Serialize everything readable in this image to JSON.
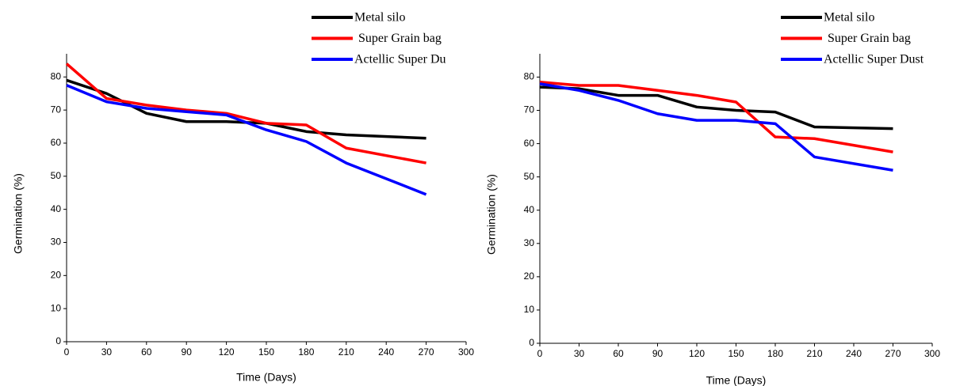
{
  "chart_data": [
    {
      "type": "line",
      "xlabel": "Time (Days)",
      "ylabel": "Germination (%)",
      "x": [
        0,
        30,
        60,
        90,
        120,
        150,
        180,
        210,
        270
      ],
      "series": [
        {
          "name": "Metal silo",
          "color": "#000000",
          "values": [
            79,
            75,
            69,
            66.5,
            66.5,
            66,
            63.5,
            62.5,
            61.5
          ]
        },
        {
          "name": "Super Grain bag",
          "color": "#ff0000",
          "values": [
            84,
            73.5,
            71.5,
            70,
            69,
            66,
            65.5,
            58.5,
            54
          ]
        },
        {
          "name": "Actellic Super Du",
          "color": "#0000ff",
          "values": [
            77.5,
            72.5,
            70.5,
            69.5,
            68.5,
            64,
            60.5,
            54,
            44.5
          ]
        }
      ],
      "xlim": [
        0,
        300
      ],
      "xticks": [
        0,
        30,
        60,
        90,
        120,
        150,
        180,
        210,
        240,
        270,
        300
      ],
      "ylim": [
        0,
        87
      ],
      "yticks": [
        0,
        10,
        20,
        30,
        40,
        50,
        60,
        70,
        80
      ]
    },
    {
      "type": "line",
      "xlabel": "Time (Days)",
      "ylabel": "Germination (%)",
      "x": [
        0,
        30,
        60,
        90,
        120,
        150,
        180,
        210,
        270
      ],
      "series": [
        {
          "name": "Metal silo",
          "color": "#000000",
          "values": [
            77,
            76.5,
            74.5,
            74.5,
            71,
            70,
            69.5,
            65,
            64.5
          ]
        },
        {
          "name": "Super Grain bag",
          "color": "#ff0000",
          "values": [
            78.5,
            77.5,
            77.5,
            76,
            74.5,
            72.5,
            62,
            61.5,
            57.5
          ]
        },
        {
          "name": "Actellic Super Dust",
          "color": "#0000ff",
          "values": [
            78,
            76,
            73,
            69,
            67,
            67,
            66,
            56,
            52
          ]
        }
      ],
      "xlim": [
        0,
        300
      ],
      "xticks": [
        0,
        30,
        60,
        90,
        120,
        150,
        180,
        210,
        240,
        270,
        300
      ],
      "ylim": [
        0,
        87
      ],
      "yticks": [
        0,
        10,
        20,
        30,
        40,
        50,
        60,
        70,
        80
      ]
    }
  ]
}
